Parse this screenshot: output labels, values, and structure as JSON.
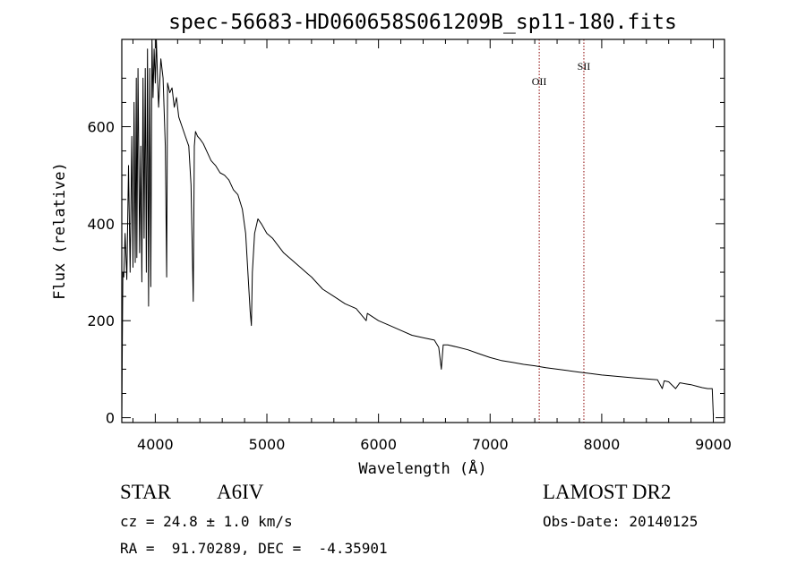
{
  "chart_data": {
    "type": "line",
    "title": "spec-56683-HD060658S061209B_sp11-180.fits",
    "xlabel": "Wavelength (Å)",
    "ylabel": "Flux (relative)",
    "xlim": [
      3700,
      9100
    ],
    "ylim": [
      -10,
      780
    ],
    "xticks": [
      4000,
      5000,
      6000,
      7000,
      8000,
      9000
    ],
    "yticks": [
      0,
      200,
      400,
      600
    ],
    "grid": false,
    "series": [
      {
        "color": "#000000",
        "x": [
          3700,
          3705,
          3710,
          3718,
          3730,
          3745,
          3760,
          3775,
          3790,
          3800,
          3810,
          3820,
          3830,
          3835,
          3845,
          3860,
          3870,
          3880,
          3890,
          3900,
          3910,
          3920,
          3930,
          3940,
          3950,
          3960,
          3970,
          3980,
          3990,
          4000,
          4010,
          4020,
          4030,
          4050,
          4070,
          4090,
          4102,
          4110,
          4130,
          4150,
          4170,
          4190,
          4210,
          4240,
          4270,
          4300,
          4320,
          4340,
          4350,
          4360,
          4380,
          4400,
          4430,
          4460,
          4500,
          4540,
          4580,
          4620,
          4660,
          4700,
          4740,
          4780,
          4810,
          4830,
          4850,
          4861,
          4870,
          4890,
          4920,
          4950,
          5000,
          5050,
          5100,
          5150,
          5200,
          5250,
          5300,
          5350,
          5400,
          5500,
          5600,
          5700,
          5800,
          5890,
          5900,
          6000,
          6100,
          6200,
          6300,
          6400,
          6500,
          6540,
          6563,
          6580,
          6620,
          6700,
          6800,
          6900,
          7000,
          7100,
          7200,
          7300,
          7400,
          7500,
          7600,
          7700,
          7800,
          7900,
          8000,
          8100,
          8200,
          8300,
          8400,
          8500,
          8542,
          8560,
          8600,
          8662,
          8700,
          8750,
          8800,
          8850,
          8900,
          8950,
          8990,
          9000
        ],
        "y": [
          0,
          150,
          300,
          290,
          380,
          285,
          520,
          300,
          580,
          310,
          650,
          320,
          700,
          330,
          720,
          340,
          560,
          280,
          700,
          370,
          720,
          300,
          760,
          230,
          720,
          270,
          800,
          660,
          760,
          690,
          780,
          700,
          640,
          740,
          700,
          560,
          290,
          690,
          670,
          680,
          640,
          660,
          620,
          600,
          580,
          560,
          480,
          240,
          560,
          590,
          580,
          575,
          565,
          550,
          530,
          520,
          505,
          500,
          490,
          470,
          460,
          430,
          380,
          300,
          220,
          190,
          300,
          380,
          410,
          400,
          380,
          370,
          355,
          340,
          330,
          320,
          310,
          300,
          290,
          265,
          250,
          235,
          225,
          200,
          215,
          200,
          190,
          180,
          170,
          165,
          160,
          145,
          100,
          150,
          150,
          146,
          140,
          132,
          124,
          118,
          114,
          110,
          107,
          103,
          100,
          97,
          94,
          91,
          88,
          86,
          84,
          82,
          80,
          78,
          60,
          76,
          74,
          60,
          72,
          70,
          68,
          65,
          62,
          60,
          60,
          5
        ]
      }
    ],
    "annotations": [
      {
        "label": "OII",
        "x": 7440
      },
      {
        "label": "SII",
        "x": 7840
      }
    ],
    "annotation_color": "#8b0000"
  },
  "info": {
    "object_class": "STAR",
    "subclass": "A6IV",
    "cz": "cz = 24.8 ± 1.0 km/s",
    "coords": "RA =  91.70289, DEC =  -4.35901",
    "survey": "LAMOST DR2",
    "obs_date": "Obs-Date: 20140125"
  }
}
